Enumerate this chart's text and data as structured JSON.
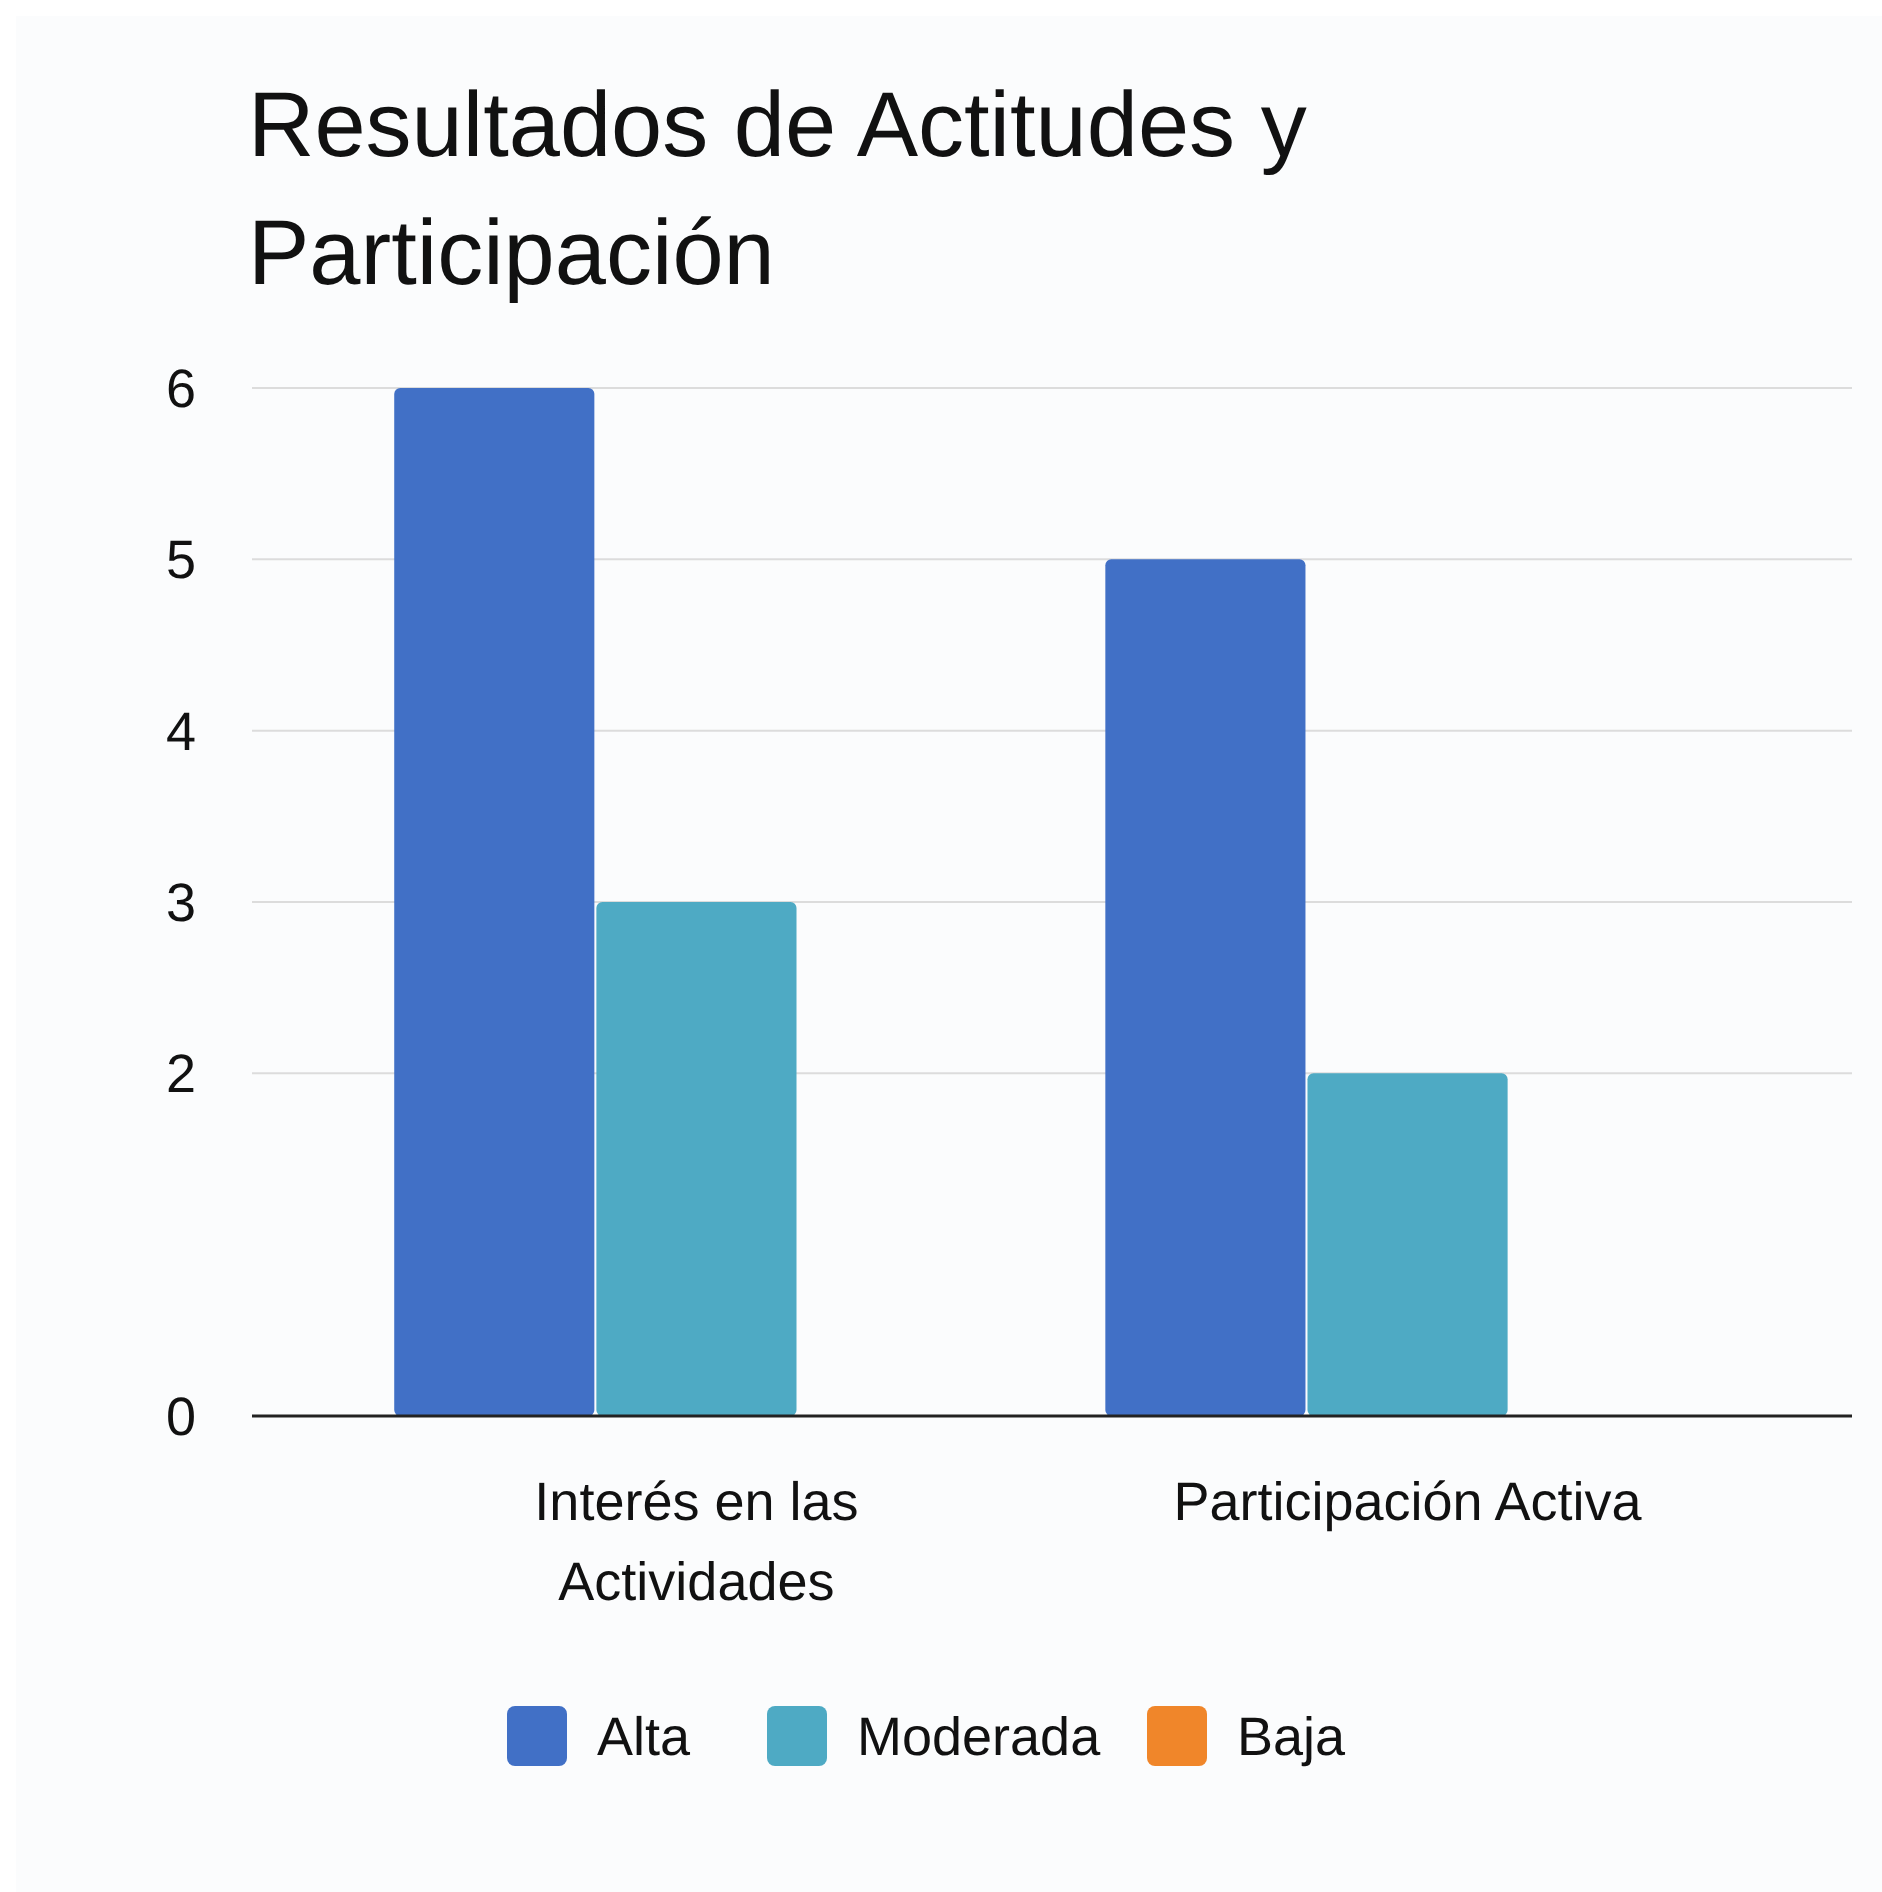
{
  "chart_data": {
    "type": "bar",
    "title": "Resultados de Actitudes y Participación",
    "categories": [
      "Interés en las Actividades",
      "Participación Activa"
    ],
    "series": [
      {
        "name": "Alta",
        "color": "#4170c6",
        "values": [
          6,
          5
        ]
      },
      {
        "name": "Moderada",
        "color": "#4eaac4",
        "values": [
          3,
          2
        ]
      },
      {
        "name": "Baja",
        "color": "#f0862a",
        "values": [
          null,
          null
        ]
      }
    ],
    "ylim": [
      0,
      6
    ],
    "yticks": [
      0,
      2,
      3,
      4,
      5,
      6
    ],
    "grid": "y",
    "legend": "bottom"
  }
}
